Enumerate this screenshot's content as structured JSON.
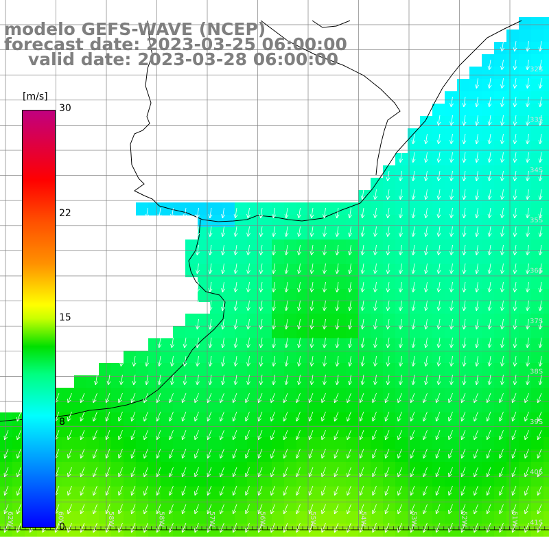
{
  "title": {
    "line1": "modelo GEFS-WAVE (NCEP)",
    "line2": "forecast date: 2023-03-25 06:00:00",
    "line3": "    valid date: 2023-03-28 06:00:00"
  },
  "colorbar": {
    "unit": "[m/s]",
    "ticks": [
      "30",
      "22",
      "15",
      "8",
      "0"
    ],
    "tick_values": [
      30,
      22,
      15,
      8,
      0
    ],
    "min": 0,
    "max": 30,
    "gradient_stops": [
      {
        "v": 0,
        "color": "#0000ff"
      },
      {
        "v": 4,
        "color": "#0080ff"
      },
      {
        "v": 8,
        "color": "#00ffff"
      },
      {
        "v": 11,
        "color": "#00ff80"
      },
      {
        "v": 13,
        "color": "#00e000"
      },
      {
        "v": 15,
        "color": "#c8ff00"
      },
      {
        "v": 16,
        "color": "#ffff00"
      },
      {
        "v": 19,
        "color": "#ff9000"
      },
      {
        "v": 22,
        "color": "#ff5000"
      },
      {
        "v": 25,
        "color": "#ff0000"
      },
      {
        "v": 30,
        "color": "#c00080"
      }
    ]
  },
  "map": {
    "variable": "wind speed",
    "longitude_labels": [
      "62W",
      "60W",
      "58W",
      "58W",
      "57W",
      "56W",
      "55W",
      "54W",
      "53W",
      "52W",
      "51W"
    ],
    "latitude_labels": [
      "32S",
      "33S",
      "34S",
      "35S",
      "36S",
      "37S",
      "38S",
      "39S",
      "40S",
      "41S"
    ],
    "arrow_direction": "south-southwest",
    "colors": {
      "land": "#ffffff",
      "grid": "#808080",
      "coast": "#000000",
      "arrow": "#ffffff"
    }
  }
}
